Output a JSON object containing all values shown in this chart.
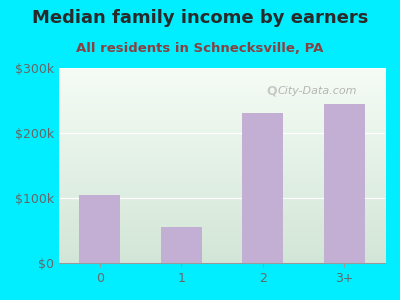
{
  "title": "Median family income by earners",
  "subtitle": "All residents in Schnecksville, PA",
  "categories": [
    "0",
    "1",
    "2",
    "3+"
  ],
  "values": [
    105000,
    55000,
    230000,
    245000
  ],
  "bar_color": "#c4afd4",
  "title_color": "#2a2a2a",
  "subtitle_color": "#8b4040",
  "background_outer": "#00eeff",
  "ylim": [
    0,
    300000
  ],
  "yticks": [
    0,
    100000,
    200000,
    300000
  ],
  "ytick_labels": [
    "$0",
    "$100k",
    "$200k",
    "$300k"
  ],
  "watermark": "City-Data.com",
  "title_fontsize": 13,
  "subtitle_fontsize": 9.5,
  "tick_fontsize": 9
}
